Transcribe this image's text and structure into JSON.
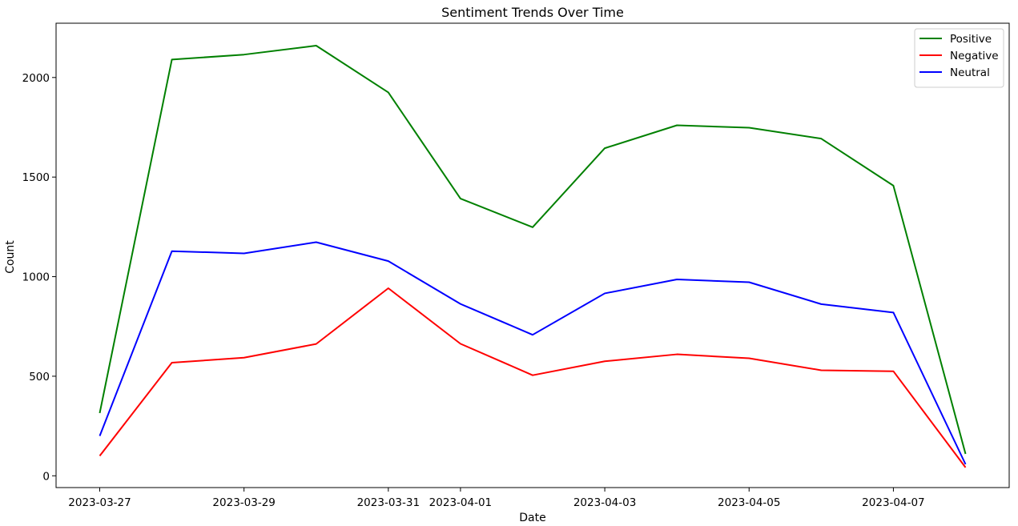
{
  "chart_data": {
    "type": "line",
    "title": "Sentiment Trends Over Time",
    "xlabel": "Date",
    "ylabel": "Count",
    "x": [
      "2023-03-27",
      "2023-03-28",
      "2023-03-29",
      "2023-03-30",
      "2023-03-31",
      "2023-04-01",
      "2023-04-02",
      "2023-04-03",
      "2023-04-04",
      "2023-04-05",
      "2023-04-06",
      "2023-04-07",
      "2023-04-08"
    ],
    "xticks": [
      "2023-03-27",
      "2023-03-29",
      "2023-03-31",
      "2023-04-01",
      "2023-04-03",
      "2023-04-05",
      "2023-04-07"
    ],
    "yticks": [
      0,
      500,
      1000,
      1500,
      2000
    ],
    "ylim": [
      -80,
      2270
    ],
    "grid": false,
    "legend_position": "top-right",
    "series": [
      {
        "name": "Positive",
        "color": "#008000",
        "values": [
          315,
          2090,
          2115,
          2160,
          1925,
          1392,
          1248,
          1645,
          1760,
          1748,
          1693,
          1457,
          110
        ]
      },
      {
        "name": "Negative",
        "color": "#ff0000",
        "values": [
          100,
          568,
          593,
          662,
          942,
          663,
          505,
          575,
          610,
          590,
          530,
          525,
          42
        ]
      },
      {
        "name": "Neutral",
        "color": "#0000ff",
        "values": [
          200,
          1128,
          1117,
          1173,
          1078,
          863,
          708,
          916,
          986,
          972,
          862,
          820,
          58
        ]
      }
    ]
  }
}
